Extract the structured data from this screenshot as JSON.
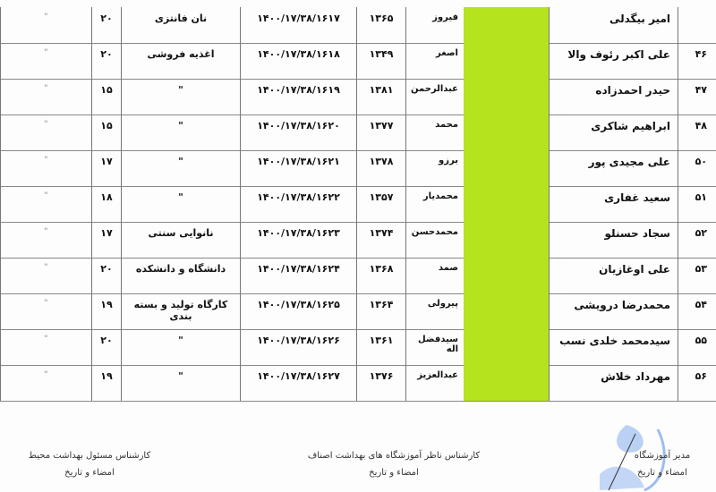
{
  "rows": [
    {
      "num": "",
      "name": "امیر بیگدلی",
      "father": "فیروز",
      "year": "۱۳۶۵",
      "code": "۱۴۰۰/۱۷/۳۸/۱۶۱۷",
      "business": "نان فانتزی",
      "count": "۲۰",
      "ditto": "\""
    },
    {
      "num": "۴۶",
      "name": "علی اکبر رئوف والا",
      "father": "اصغر",
      "year": "۱۳۴۹",
      "code": "۱۴۰۰/۱۷/۳۸/۱۶۱۸",
      "business": "اغذیه فروشی",
      "count": "۲۰",
      "ditto": "\""
    },
    {
      "num": "۴۷",
      "name": "حیدر احمدزاده",
      "father": "عبدالرحمن",
      "year": "۱۳۸۱",
      "code": "۱۴۰۰/۱۷/۳۸/۱۶۱۹",
      "business": "\"",
      "count": "۱۵",
      "ditto": "\""
    },
    {
      "num": "۴۸",
      "name": "ابراهیم شاکری",
      "father": "محمد",
      "year": "۱۳۷۷",
      "code": "۱۴۰۰/۱۷/۳۸/۱۶۲۰",
      "business": "\"",
      "count": "۱۵",
      "ditto": "\""
    },
    {
      "num": "۵۰",
      "name": "علی مجیدی پور",
      "father": "برزو",
      "year": "۱۳۷۸",
      "code": "۱۴۰۰/۱۷/۳۸/۱۶۲۱",
      "business": "\"",
      "count": "۱۷",
      "ditto": "\""
    },
    {
      "num": "۵۱",
      "name": "سعید غفاری",
      "father": "محمدیار",
      "year": "۱۳۵۷",
      "code": "۱۴۰۰/۱۷/۳۸/۱۶۲۲",
      "business": "\"",
      "count": "۱۸",
      "ditto": "\""
    },
    {
      "num": "۵۲",
      "name": "سجاد حسنلو",
      "father": "محمدحسن",
      "year": "۱۳۷۴",
      "code": "۱۴۰۰/۱۷/۳۸/۱۶۲۳",
      "business": "نانوایی سنتی",
      "count": "۱۷",
      "ditto": "\""
    },
    {
      "num": "۵۳",
      "name": "علی اوغازیان",
      "father": "صمد",
      "year": "۱۳۶۸",
      "code": "۱۴۰۰/۱۷/۳۸/۱۶۲۴",
      "business": "دانشگاه و دانشکده",
      "count": "۲۰",
      "ditto": "\""
    },
    {
      "num": "۵۴",
      "name": "محمدرضا درویشی",
      "father": "پیرولی",
      "year": "۱۳۶۴",
      "code": "۱۴۰۰/۱۷/۳۸/۱۶۲۵",
      "business": "کارگاه تولید و بسته بندی",
      "count": "۱۹",
      "ditto": "\""
    },
    {
      "num": "۵۵",
      "name": "سیدمحمد خلدی نسب",
      "father": "سیدفضل اله",
      "year": "۱۳۶۱",
      "code": "۱۴۰۰/۱۷/۳۸/۱۶۲۶",
      "business": "\"",
      "count": "۲۰",
      "ditto": "\""
    },
    {
      "num": "۵۶",
      "name": "مهرداد خلاش",
      "father": "عبدالعزیز",
      "year": "۱۳۷۶",
      "code": "۱۴۰۰/۱۷/۳۸/۱۶۲۷",
      "business": "\"",
      "count": "۱۹",
      "ditto": "\""
    }
  ],
  "signatures": {
    "left": {
      "title": "کارشناس مسئول بهداشت محیط",
      "sub": "امضاء و تاریخ"
    },
    "center": {
      "title": "کارشناس ناظر آموزشگاه های بهداشت اصناف",
      "sub": "امضاء و تاریخ"
    },
    "right": {
      "title": "مدیر آموزشگاه",
      "sub": "امضاء و تاریخ"
    }
  },
  "colors": {
    "highlight": "#b5e31e",
    "stamp": "#8fb4e8"
  }
}
